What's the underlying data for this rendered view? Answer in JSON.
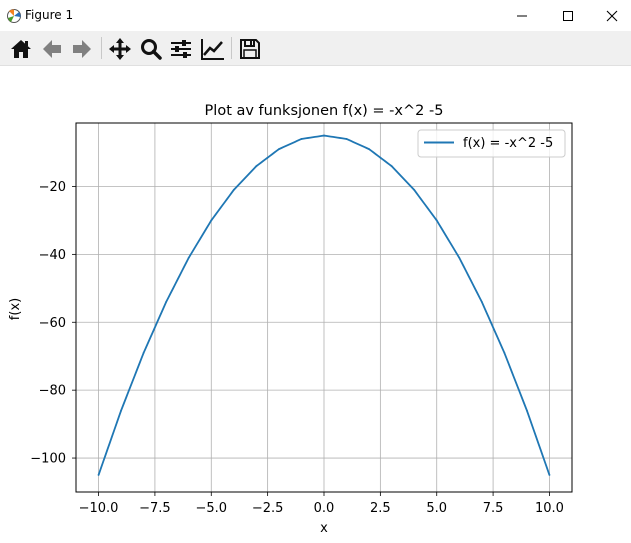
{
  "window": {
    "title": "Figure 1"
  },
  "toolbar": {
    "icons": [
      "home-icon",
      "back-arrow-icon",
      "forward-arrow-icon",
      "pan-move-icon",
      "zoom-magnifier-icon",
      "configure-subplots-icon",
      "edit-axis-icon",
      "save-floppy-icon"
    ]
  },
  "chart_data": {
    "type": "line",
    "title": "Plot av funksjonen f(x) = -x^2 -5",
    "xlabel": "x",
    "ylabel": "f(x)",
    "xlim": [
      -11,
      11
    ],
    "ylim": [
      -110,
      -1.3
    ],
    "xticks": [
      -10.0,
      -7.5,
      -5.0,
      -2.5,
      0.0,
      2.5,
      5.0,
      7.5,
      10.0
    ],
    "xtick_labels": [
      "−10.0",
      "−7.5",
      "−5.0",
      "−2.5",
      "0.0",
      "2.5",
      "5.0",
      "7.5",
      "10.0"
    ],
    "yticks": [
      -20,
      -40,
      -60,
      -80,
      -100
    ],
    "ytick_labels": [
      "−20",
      "−40",
      "−60",
      "−80",
      "−100"
    ],
    "grid": true,
    "legend_position": "top-right",
    "series": [
      {
        "name": "f(x) = -x^2 -5",
        "color": "#1f77b4",
        "x": [
          -10,
          -9,
          -8,
          -7,
          -6,
          -5,
          -4,
          -3,
          -2,
          -1,
          0,
          1,
          2,
          3,
          4,
          5,
          6,
          7,
          8,
          9,
          10
        ],
        "y": [
          -105,
          -86,
          -69,
          -54,
          -41,
          -30,
          -21,
          -14,
          -9,
          -6,
          -5,
          -6,
          -9,
          -14,
          -21,
          -30,
          -41,
          -54,
          -69,
          -86,
          -105
        ]
      }
    ]
  }
}
